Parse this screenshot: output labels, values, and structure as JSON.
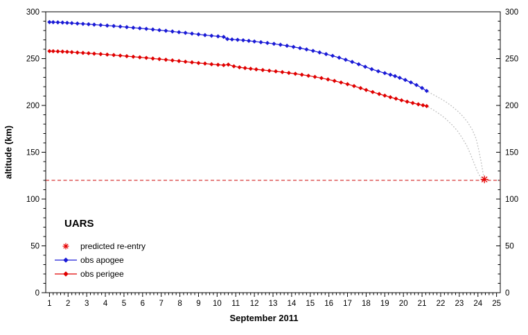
{
  "chart_data": {
    "type": "line",
    "title": "",
    "xlabel": "September 2011",
    "ylabel": "altitude (km)",
    "xlim": [
      1,
      25
    ],
    "ylim": [
      0,
      300
    ],
    "x_major_ticks": [
      1,
      2,
      3,
      4,
      5,
      6,
      7,
      8,
      9,
      10,
      11,
      12,
      13,
      14,
      15,
      16,
      17,
      18,
      19,
      20,
      21,
      22,
      23,
      24,
      25
    ],
    "x_minor_step": 0.2,
    "y_major_ticks": [
      0,
      50,
      100,
      150,
      200,
      250,
      300
    ],
    "y_minor_step": 10,
    "grid": false,
    "legend_position": "lower-left",
    "reentry_line_altitude_km": 120,
    "series": [
      {
        "name": "obs apogee",
        "style": "line-marker",
        "marker": "diamond",
        "color": "#1a1ad6",
        "points": [
          [
            1.0,
            289.0
          ],
          [
            1.2,
            288.9
          ],
          [
            1.45,
            288.7
          ],
          [
            1.7,
            288.5
          ],
          [
            1.95,
            288.2
          ],
          [
            2.2,
            287.9
          ],
          [
            2.5,
            287.5
          ],
          [
            2.8,
            287.1
          ],
          [
            3.1,
            286.7
          ],
          [
            3.4,
            286.3
          ],
          [
            3.75,
            285.8
          ],
          [
            4.1,
            285.3
          ],
          [
            4.45,
            284.8
          ],
          [
            4.8,
            284.2
          ],
          [
            5.15,
            283.6
          ],
          [
            5.5,
            283.0
          ],
          [
            5.85,
            282.4
          ],
          [
            6.2,
            281.8
          ],
          [
            6.55,
            281.1
          ],
          [
            6.9,
            280.4
          ],
          [
            7.25,
            279.7
          ],
          [
            7.6,
            279.0
          ],
          [
            7.95,
            278.2
          ],
          [
            8.3,
            277.5
          ],
          [
            8.65,
            276.7
          ],
          [
            9.0,
            275.9
          ],
          [
            9.35,
            275.1
          ],
          [
            9.7,
            274.4
          ],
          [
            10.05,
            273.8
          ],
          [
            10.35,
            273.2
          ],
          [
            10.55,
            270.9
          ],
          [
            10.8,
            270.5
          ],
          [
            11.1,
            270.1
          ],
          [
            11.4,
            269.6
          ],
          [
            11.7,
            269.0
          ],
          [
            12.0,
            268.3
          ],
          [
            12.35,
            267.5
          ],
          [
            12.7,
            266.7
          ],
          [
            13.05,
            265.8
          ],
          [
            13.4,
            264.8
          ],
          [
            13.75,
            263.7
          ],
          [
            14.1,
            262.5
          ],
          [
            14.45,
            261.2
          ],
          [
            14.8,
            259.8
          ],
          [
            15.15,
            258.3
          ],
          [
            15.5,
            256.6
          ],
          [
            15.85,
            254.8
          ],
          [
            16.2,
            253.0
          ],
          [
            16.55,
            251.0
          ],
          [
            16.9,
            248.8
          ],
          [
            17.25,
            246.5
          ],
          [
            17.6,
            244.0
          ],
          [
            17.95,
            241.3
          ],
          [
            18.3,
            238.7
          ],
          [
            18.65,
            236.5
          ],
          [
            19.0,
            234.5
          ],
          [
            19.3,
            232.8
          ],
          [
            19.55,
            231.3
          ],
          [
            19.8,
            229.5
          ],
          [
            20.1,
            227.2
          ],
          [
            20.4,
            224.6
          ],
          [
            20.7,
            221.8
          ],
          [
            21.0,
            218.6
          ],
          [
            21.25,
            215.5
          ]
        ]
      },
      {
        "name": "obs perigee",
        "style": "line-marker",
        "marker": "diamond",
        "color": "#e00000",
        "points": [
          [
            1.0,
            258.0
          ],
          [
            1.2,
            257.9
          ],
          [
            1.45,
            257.7
          ],
          [
            1.7,
            257.5
          ],
          [
            1.95,
            257.2
          ],
          [
            2.2,
            256.9
          ],
          [
            2.5,
            256.5
          ],
          [
            2.8,
            256.1
          ],
          [
            3.1,
            255.7
          ],
          [
            3.4,
            255.3
          ],
          [
            3.75,
            254.8
          ],
          [
            4.1,
            254.3
          ],
          [
            4.45,
            253.8
          ],
          [
            4.8,
            253.2
          ],
          [
            5.15,
            252.6
          ],
          [
            5.5,
            252.0
          ],
          [
            5.85,
            251.4
          ],
          [
            6.2,
            250.8
          ],
          [
            6.55,
            250.1
          ],
          [
            6.9,
            249.5
          ],
          [
            7.25,
            248.8
          ],
          [
            7.6,
            248.1
          ],
          [
            7.95,
            247.4
          ],
          [
            8.3,
            246.7
          ],
          [
            8.65,
            246.0
          ],
          [
            9.0,
            245.3
          ],
          [
            9.35,
            244.7
          ],
          [
            9.7,
            244.0
          ],
          [
            10.05,
            243.4
          ],
          [
            10.35,
            243.0
          ],
          [
            10.6,
            243.6
          ],
          [
            10.9,
            241.8
          ],
          [
            11.2,
            240.7
          ],
          [
            11.5,
            239.9
          ],
          [
            11.8,
            239.2
          ],
          [
            12.1,
            238.5
          ],
          [
            12.45,
            237.8
          ],
          [
            12.8,
            237.1
          ],
          [
            13.15,
            236.4
          ],
          [
            13.5,
            235.6
          ],
          [
            13.85,
            234.7
          ],
          [
            14.2,
            233.8
          ],
          [
            14.55,
            232.8
          ],
          [
            14.9,
            231.7
          ],
          [
            15.25,
            230.5
          ],
          [
            15.6,
            229.2
          ],
          [
            15.95,
            227.8
          ],
          [
            16.3,
            226.2
          ],
          [
            16.65,
            224.5
          ],
          [
            17.0,
            222.7
          ],
          [
            17.35,
            220.7
          ],
          [
            17.7,
            218.5
          ],
          [
            18.0,
            216.5
          ],
          [
            18.35,
            214.3
          ],
          [
            18.7,
            212.2
          ],
          [
            19.0,
            210.5
          ],
          [
            19.3,
            208.8
          ],
          [
            19.6,
            207.2
          ],
          [
            19.9,
            205.5
          ],
          [
            20.2,
            204.0
          ],
          [
            20.5,
            202.6
          ],
          [
            20.8,
            201.2
          ],
          [
            21.05,
            200.2
          ],
          [
            21.25,
            199.3
          ]
        ]
      },
      {
        "name": "predicted apogee track",
        "style": "dotted",
        "color": "#c0c0c0",
        "points": [
          [
            21.35,
            214.3
          ],
          [
            21.7,
            210.5
          ],
          [
            22.0,
            207.2
          ],
          [
            22.3,
            203.5
          ],
          [
            22.6,
            199.2
          ],
          [
            22.9,
            194.2
          ],
          [
            23.2,
            188.2
          ],
          [
            23.45,
            182.0
          ],
          [
            23.7,
            174.0
          ],
          [
            23.9,
            164.5
          ],
          [
            24.05,
            152.0
          ],
          [
            24.18,
            139.0
          ],
          [
            24.28,
            127.0
          ],
          [
            24.35,
            121.5
          ]
        ]
      },
      {
        "name": "predicted perigee track",
        "style": "dotted",
        "color": "#c0c0c0",
        "points": [
          [
            21.35,
            198.3
          ],
          [
            21.7,
            194.0
          ],
          [
            22.0,
            190.0
          ],
          [
            22.3,
            185.2
          ],
          [
            22.6,
            179.5
          ],
          [
            22.9,
            172.8
          ],
          [
            23.15,
            165.5
          ],
          [
            23.4,
            157.0
          ],
          [
            23.6,
            148.0
          ],
          [
            23.8,
            138.0
          ],
          [
            23.98,
            129.0
          ],
          [
            24.15,
            123.0
          ],
          [
            24.35,
            121.0
          ]
        ]
      },
      {
        "name": "predicted re-entry",
        "style": "marker",
        "marker": "asterisk",
        "color": "#e60000",
        "points": [
          [
            24.35,
            121.0
          ]
        ]
      }
    ]
  },
  "axes": {
    "x_label": "September 2011",
    "y_label": "altitude (km)"
  },
  "legend": {
    "title": "UARS",
    "items": [
      {
        "label": "predicted re-entry",
        "marker": "asterisk",
        "color": "#e60000"
      },
      {
        "label": "obs apogee",
        "marker": "line-dot",
        "color": "#1a1ad6"
      },
      {
        "label": "obs perigee",
        "marker": "line-dot",
        "color": "#e00000"
      }
    ]
  },
  "colors": {
    "apogee_blue": "#1a1ad6",
    "perigee_red": "#e00000",
    "reentry_red": "#e60000",
    "reentry_line_red": "#cc0000",
    "predicted_track_gray": "#c0c0c0",
    "axis_black": "#000000",
    "background": "#ffffff"
  }
}
